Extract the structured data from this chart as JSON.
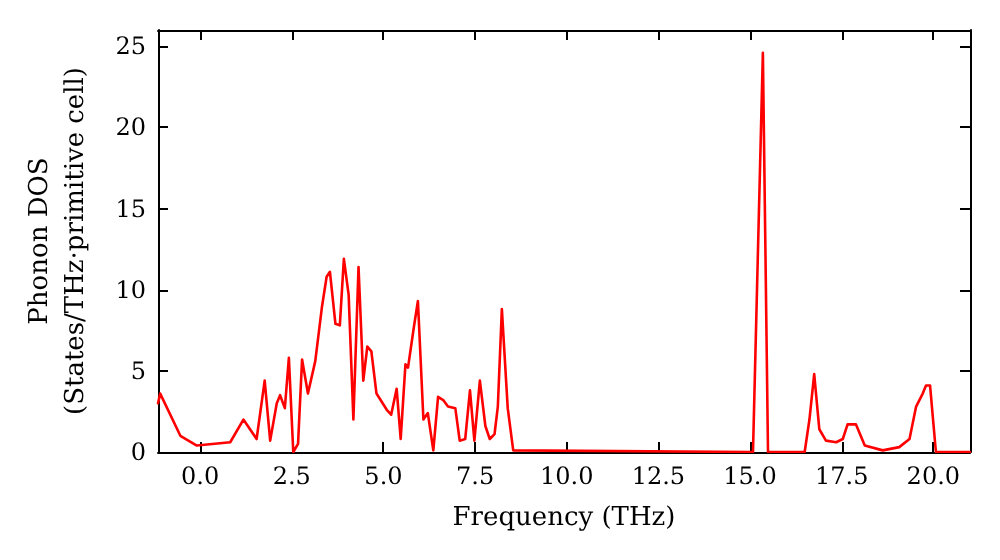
{
  "chart_data": {
    "type": "line",
    "xlabel": "Frequency (THz)",
    "ylabel": "Phonon DOS\n(States/THz·primitive cell)",
    "xlim": [
      -1.15,
      21
    ],
    "xticks": [
      {
        "value": 0,
        "label": "0.0"
      },
      {
        "value": 2.5,
        "label": "2.5"
      },
      {
        "value": 5,
        "label": "5.0"
      },
      {
        "value": 7.5,
        "label": "7.5"
      },
      {
        "value": 10,
        "label": "10.0"
      },
      {
        "value": 12.5,
        "label": "12.5"
      },
      {
        "value": 15,
        "label": "15.0"
      },
      {
        "value": 17.5,
        "label": "17.5"
      },
      {
        "value": 20,
        "label": "20.0"
      }
    ],
    "ylim": [
      0,
      26
    ],
    "yticks": [
      0,
      5,
      10,
      15,
      20,
      25
    ],
    "grid": false,
    "marker": "none",
    "line_style": "solid",
    "series": [
      {
        "color": "#ff0000",
        "x": [
          -1.15,
          -1.09,
          -0.54,
          -0.09,
          0.82,
          1.18,
          1.54,
          1.76,
          1.91,
          2.09,
          2.18,
          2.31,
          2.42,
          2.54,
          2.67,
          2.78,
          2.94,
          3.14,
          3.32,
          3.45,
          3.54,
          3.69,
          3.81,
          3.92,
          4.05,
          4.18,
          4.32,
          4.45,
          4.56,
          4.67,
          4.81,
          5.09,
          5.21,
          5.36,
          5.47,
          5.6,
          5.67,
          5.83,
          5.94,
          6.09,
          6.21,
          6.36,
          6.49,
          6.63,
          6.76,
          6.96,
          7.08,
          7.23,
          7.36,
          7.48,
          7.63,
          7.78,
          7.9,
          8.03,
          8.12,
          8.23,
          8.39,
          8.54,
          15.08,
          15.35,
          15.49,
          16.49,
          16.62,
          16.75,
          16.89,
          17.07,
          17.35,
          17.53,
          17.66,
          17.89,
          18.13,
          18.62,
          19.07,
          19.35,
          19.53,
          19.71,
          19.8,
          19.91,
          20.07,
          21
        ],
        "values": [
          3,
          3.6,
          1.0,
          0.4,
          0.6,
          2.0,
          0.8,
          4.4,
          0.7,
          3.0,
          3.5,
          2.7,
          5.8,
          0,
          0.5,
          5.7,
          3.6,
          5.6,
          8.9,
          10.8,
          11.1,
          7.9,
          7.8,
          11.9,
          9.7,
          2.0,
          11.4,
          4.4,
          6.5,
          6.2,
          3.6,
          2.6,
          2.3,
          3.9,
          0.8,
          5.4,
          5.2,
          7.7,
          9.3,
          2.0,
          2.4,
          0.1,
          3.4,
          3.2,
          2.8,
          2.7,
          0.7,
          0.8,
          3.8,
          0.7,
          4.4,
          1.6,
          0.8,
          1.1,
          2.8,
          8.8,
          2.7,
          0.1,
          0,
          24.6,
          0,
          0,
          2.0,
          4.8,
          1.4,
          0.7,
          0.6,
          0.8,
          1.7,
          1.7,
          0.4,
          0.1,
          0.3,
          0.8,
          2.8,
          3.6,
          4.1,
          4.1,
          0,
          0
        ]
      }
    ]
  }
}
